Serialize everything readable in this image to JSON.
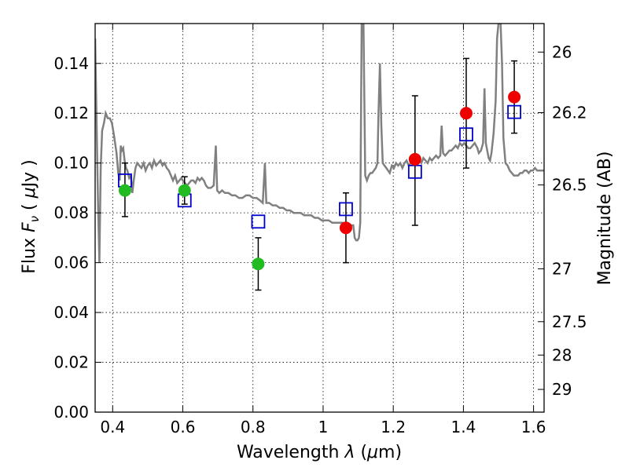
{
  "chart_data": {
    "type": "scatter",
    "xlabel_parts": [
      "Wavelength  ",
      "λ",
      " (",
      "μ",
      "m)"
    ],
    "ylabel_parts": [
      "Flux  ",
      "F",
      "ν",
      "  ( ",
      "μ",
      "Jy )"
    ],
    "right_ylabel": "Magnitude (AB)",
    "xlim": [
      0.35,
      1.63
    ],
    "ylim": [
      0.0,
      0.156
    ],
    "grid": true,
    "x_ticks": [
      {
        "value": 0.4,
        "label": "0.4"
      },
      {
        "value": 0.6,
        "label": "0.6"
      },
      {
        "value": 0.8,
        "label": "0.8"
      },
      {
        "value": 1.0,
        "label": "1"
      },
      {
        "value": 1.2,
        "label": "1.2"
      },
      {
        "value": 1.4,
        "label": "1.4"
      },
      {
        "value": 1.6,
        "label": "1.6"
      }
    ],
    "y_ticks": [
      {
        "value": 0.0,
        "label": "0.00"
      },
      {
        "value": 0.02,
        "label": "0.02"
      },
      {
        "value": 0.04,
        "label": "0.04"
      },
      {
        "value": 0.06,
        "label": "0.06"
      },
      {
        "value": 0.08,
        "label": "0.08"
      },
      {
        "value": 0.1,
        "label": "0.10"
      },
      {
        "value": 0.12,
        "label": "0.12"
      },
      {
        "value": 0.14,
        "label": "0.14"
      }
    ],
    "right_ticks": [
      {
        "value": 26,
        "label": "26"
      },
      {
        "value": 26.2,
        "label": "26.2"
      },
      {
        "value": 26.5,
        "label": "26.5"
      },
      {
        "value": 27,
        "label": "27"
      },
      {
        "value": 27.5,
        "label": "27.5"
      },
      {
        "value": 28,
        "label": "28"
      },
      {
        "value": 29,
        "label": "29"
      }
    ],
    "spectrum": {
      "color": "#808080",
      "points": [
        [
          0.35,
          0.15
        ],
        [
          0.358,
          0.085
        ],
        [
          0.362,
          0.06
        ],
        [
          0.366,
          0.098
        ],
        [
          0.37,
          0.113
        ],
        [
          0.375,
          0.116
        ],
        [
          0.38,
          0.12
        ],
        [
          0.386,
          0.118
        ],
        [
          0.392,
          0.118
        ],
        [
          0.398,
          0.116
        ],
        [
          0.405,
          0.11
        ],
        [
          0.411,
          0.104
        ],
        [
          0.416,
          0.096
        ],
        [
          0.42,
          0.093
        ],
        [
          0.423,
          0.107
        ],
        [
          0.426,
          0.105
        ],
        [
          0.43,
          0.106
        ],
        [
          0.434,
          0.101
        ],
        [
          0.438,
          0.098
        ],
        [
          0.442,
          0.097
        ],
        [
          0.447,
          0.094
        ],
        [
          0.452,
          0.095
        ],
        [
          0.456,
          0.088
        ],
        [
          0.46,
          0.093
        ],
        [
          0.465,
          0.098
        ],
        [
          0.47,
          0.1
        ],
        [
          0.476,
          0.099
        ],
        [
          0.482,
          0.098
        ],
        [
          0.488,
          0.1
        ],
        [
          0.494,
          0.097
        ],
        [
          0.5,
          0.099
        ],
        [
          0.506,
          0.1
        ],
        [
          0.512,
          0.098
        ],
        [
          0.518,
          0.101
        ],
        [
          0.524,
          0.099
        ],
        [
          0.53,
          0.1
        ],
        [
          0.536,
          0.101
        ],
        [
          0.542,
          0.099
        ],
        [
          0.548,
          0.1
        ],
        [
          0.554,
          0.098
        ],
        [
          0.56,
          0.097
        ],
        [
          0.566,
          0.095
        ],
        [
          0.572,
          0.093
        ],
        [
          0.578,
          0.095
        ],
        [
          0.584,
          0.092
        ],
        [
          0.59,
          0.093
        ],
        [
          0.596,
          0.094
        ],
        [
          0.6,
          0.093
        ],
        [
          0.606,
          0.092
        ],
        [
          0.612,
          0.091
        ],
        [
          0.618,
          0.092
        ],
        [
          0.624,
          0.093
        ],
        [
          0.63,
          0.093
        ],
        [
          0.636,
          0.092
        ],
        [
          0.642,
          0.094
        ],
        [
          0.648,
          0.093
        ],
        [
          0.654,
          0.094
        ],
        [
          0.66,
          0.093
        ],
        [
          0.666,
          0.091
        ],
        [
          0.672,
          0.09
        ],
        [
          0.68,
          0.09
        ],
        [
          0.688,
          0.091
        ],
        [
          0.694,
          0.107
        ],
        [
          0.698,
          0.089
        ],
        [
          0.704,
          0.088
        ],
        [
          0.712,
          0.089
        ],
        [
          0.72,
          0.088
        ],
        [
          0.73,
          0.088
        ],
        [
          0.74,
          0.087
        ],
        [
          0.75,
          0.087
        ],
        [
          0.76,
          0.086
        ],
        [
          0.77,
          0.086
        ],
        [
          0.78,
          0.087
        ],
        [
          0.79,
          0.087
        ],
        [
          0.8,
          0.086
        ],
        [
          0.81,
          0.086
        ],
        [
          0.82,
          0.085
        ],
        [
          0.828,
          0.084
        ],
        [
          0.834,
          0.1
        ],
        [
          0.838,
          0.084
        ],
        [
          0.846,
          0.084
        ],
        [
          0.856,
          0.083
        ],
        [
          0.866,
          0.083
        ],
        [
          0.876,
          0.082
        ],
        [
          0.886,
          0.082
        ],
        [
          0.896,
          0.081
        ],
        [
          0.906,
          0.081
        ],
        [
          0.916,
          0.08
        ],
        [
          0.926,
          0.08
        ],
        [
          0.936,
          0.08
        ],
        [
          0.946,
          0.079
        ],
        [
          0.956,
          0.079
        ],
        [
          0.966,
          0.079
        ],
        [
          0.976,
          0.078
        ],
        [
          0.986,
          0.078
        ],
        [
          0.996,
          0.077
        ],
        [
          1.006,
          0.077
        ],
        [
          1.016,
          0.077
        ],
        [
          1.026,
          0.076
        ],
        [
          1.036,
          0.076
        ],
        [
          1.046,
          0.076
        ],
        [
          1.056,
          0.076
        ],
        [
          1.066,
          0.075
        ],
        [
          1.076,
          0.075
        ],
        [
          1.086,
          0.075
        ],
        [
          1.09,
          0.07
        ],
        [
          1.094,
          0.069
        ],
        [
          1.098,
          0.069
        ],
        [
          1.102,
          0.07
        ],
        [
          1.106,
          0.076
        ],
        [
          1.11,
          0.156
        ],
        [
          1.115,
          0.156
        ],
        [
          1.12,
          0.095
        ],
        [
          1.125,
          0.093
        ],
        [
          1.13,
          0.095
        ],
        [
          1.135,
          0.096
        ],
        [
          1.14,
          0.096
        ],
        [
          1.145,
          0.097
        ],
        [
          1.15,
          0.098
        ],
        [
          1.155,
          0.1
        ],
        [
          1.158,
          0.12
        ],
        [
          1.162,
          0.14
        ],
        [
          1.166,
          0.115
        ],
        [
          1.17,
          0.1
        ],
        [
          1.175,
          0.099
        ],
        [
          1.18,
          0.098
        ],
        [
          1.185,
          0.097
        ],
        [
          1.19,
          0.096
        ],
        [
          1.196,
          0.099
        ],
        [
          1.202,
          0.098
        ],
        [
          1.208,
          0.1
        ],
        [
          1.214,
          0.099
        ],
        [
          1.22,
          0.1
        ],
        [
          1.226,
          0.098
        ],
        [
          1.232,
          0.1
        ],
        [
          1.238,
          0.101
        ],
        [
          1.244,
          0.099
        ],
        [
          1.25,
          0.1
        ],
        [
          1.256,
          0.101
        ],
        [
          1.262,
          0.1
        ],
        [
          1.268,
          0.102
        ],
        [
          1.274,
          0.101
        ],
        [
          1.28,
          0.1
        ],
        [
          1.286,
          0.102
        ],
        [
          1.292,
          0.101
        ],
        [
          1.298,
          0.1
        ],
        [
          1.304,
          0.102
        ],
        [
          1.31,
          0.101
        ],
        [
          1.316,
          0.102
        ],
        [
          1.322,
          0.103
        ],
        [
          1.328,
          0.102
        ],
        [
          1.334,
          0.103
        ],
        [
          1.338,
          0.115
        ],
        [
          1.342,
          0.104
        ],
        [
          1.348,
          0.103
        ],
        [
          1.354,
          0.104
        ],
        [
          1.36,
          0.105
        ],
        [
          1.366,
          0.105
        ],
        [
          1.372,
          0.106
        ],
        [
          1.378,
          0.107
        ],
        [
          1.384,
          0.106
        ],
        [
          1.39,
          0.108
        ],
        [
          1.396,
          0.107
        ],
        [
          1.402,
          0.108
        ],
        [
          1.408,
          0.107
        ],
        [
          1.414,
          0.106
        ],
        [
          1.42,
          0.106
        ],
        [
          1.426,
          0.107
        ],
        [
          1.432,
          0.108
        ],
        [
          1.436,
          0.107
        ],
        [
          1.44,
          0.106
        ],
        [
          1.444,
          0.104
        ],
        [
          1.45,
          0.105
        ],
        [
          1.456,
          0.108
        ],
        [
          1.46,
          0.13
        ],
        [
          1.464,
          0.108
        ],
        [
          1.468,
          0.105
        ],
        [
          1.472,
          0.102
        ],
        [
          1.476,
          0.101
        ],
        [
          1.48,
          0.104
        ],
        [
          1.486,
          0.112
        ],
        [
          1.492,
          0.125
        ],
        [
          1.496,
          0.15
        ],
        [
          1.5,
          0.156
        ],
        [
          1.506,
          0.156
        ],
        [
          1.51,
          0.14
        ],
        [
          1.514,
          0.11
        ],
        [
          1.52,
          0.1
        ],
        [
          1.526,
          0.099
        ],
        [
          1.532,
          0.097
        ],
        [
          1.538,
          0.096
        ],
        [
          1.544,
          0.095
        ],
        [
          1.55,
          0.095
        ],
        [
          1.556,
          0.095
        ],
        [
          1.562,
          0.096
        ],
        [
          1.568,
          0.096
        ],
        [
          1.574,
          0.097
        ],
        [
          1.58,
          0.097
        ],
        [
          1.586,
          0.096
        ],
        [
          1.592,
          0.097
        ],
        [
          1.598,
          0.097
        ],
        [
          1.604,
          0.098
        ],
        [
          1.61,
          0.097
        ],
        [
          1.616,
          0.097
        ],
        [
          1.622,
          0.097
        ],
        [
          1.63,
          0.097
        ]
      ]
    },
    "model_points": {
      "marker": "open-square",
      "color": "#0000cc",
      "x": [
        0.435,
        0.605,
        0.815,
        1.065,
        1.262,
        1.408,
        1.545
      ],
      "y": [
        0.093,
        0.085,
        0.0765,
        0.0815,
        0.0965,
        0.1115,
        0.1205
      ]
    },
    "optical_points": {
      "marker": "filled-circle",
      "color": "#22bb22",
      "x": [
        0.435,
        0.605,
        0.815
      ],
      "y": [
        0.089,
        0.089,
        0.0595
      ],
      "err_low": [
        0.0105,
        0.0055,
        0.0105
      ],
      "err_high": [
        0.011,
        0.0055,
        0.0105
      ]
    },
    "nir_points": {
      "marker": "filled-circle",
      "color": "#ee0000",
      "x": [
        1.065,
        1.262,
        1.408,
        1.545
      ],
      "y": [
        0.074,
        0.1015,
        0.12,
        0.1265
      ],
      "err_low": [
        0.014,
        0.0265,
        0.022,
        0.0145
      ],
      "err_high": [
        0.014,
        0.0255,
        0.022,
        0.0145
      ]
    }
  }
}
